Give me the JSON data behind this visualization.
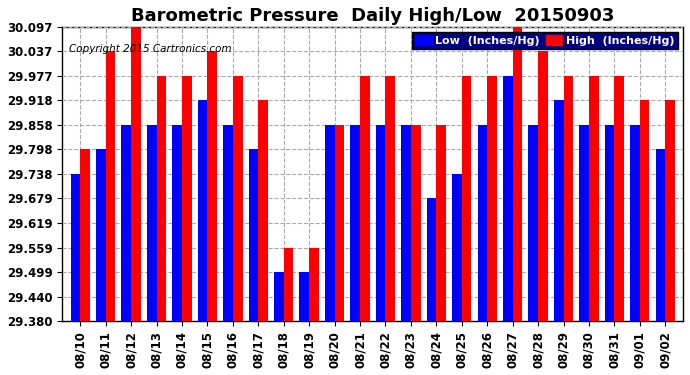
{
  "title": "Barometric Pressure  Daily High/Low  20150903",
  "copyright": "Copyright 2015 Cartronics.com",
  "dates": [
    "08/10",
    "08/11",
    "08/12",
    "08/13",
    "08/14",
    "08/15",
    "08/16",
    "08/17",
    "08/18",
    "08/19",
    "08/20",
    "08/21",
    "08/22",
    "08/23",
    "08/24",
    "08/25",
    "08/26",
    "08/27",
    "08/28",
    "08/29",
    "08/30",
    "08/31",
    "09/01",
    "09/02"
  ],
  "low_values": [
    29.738,
    29.798,
    29.858,
    29.858,
    29.858,
    29.918,
    29.858,
    29.798,
    29.499,
    29.499,
    29.858,
    29.858,
    29.858,
    29.858,
    29.679,
    29.738,
    29.858,
    29.977,
    29.858,
    29.918,
    29.858,
    29.858,
    29.858,
    29.798
  ],
  "high_values": [
    29.798,
    30.037,
    30.097,
    29.977,
    29.977,
    30.037,
    29.977,
    29.918,
    29.559,
    29.559,
    29.858,
    29.977,
    29.977,
    29.858,
    29.858,
    29.977,
    29.977,
    30.097,
    30.037,
    29.977,
    29.977,
    29.977,
    29.918,
    29.918
  ],
  "low_color": "#0000ff",
  "high_color": "#ff0000",
  "bg_color": "#ffffff",
  "plot_bg_color": "#ffffff",
  "grid_color": "#aaaaaa",
  "ymin": 29.38,
  "ymax": 30.097,
  "yticks": [
    29.38,
    29.44,
    29.499,
    29.559,
    29.619,
    29.679,
    29.738,
    29.798,
    29.858,
    29.918,
    29.977,
    30.037,
    30.097
  ],
  "title_fontsize": 13,
  "tick_fontsize": 8.5,
  "legend_low_label": "Low  (Inches/Hg)",
  "legend_high_label": "High  (Inches/Hg)"
}
